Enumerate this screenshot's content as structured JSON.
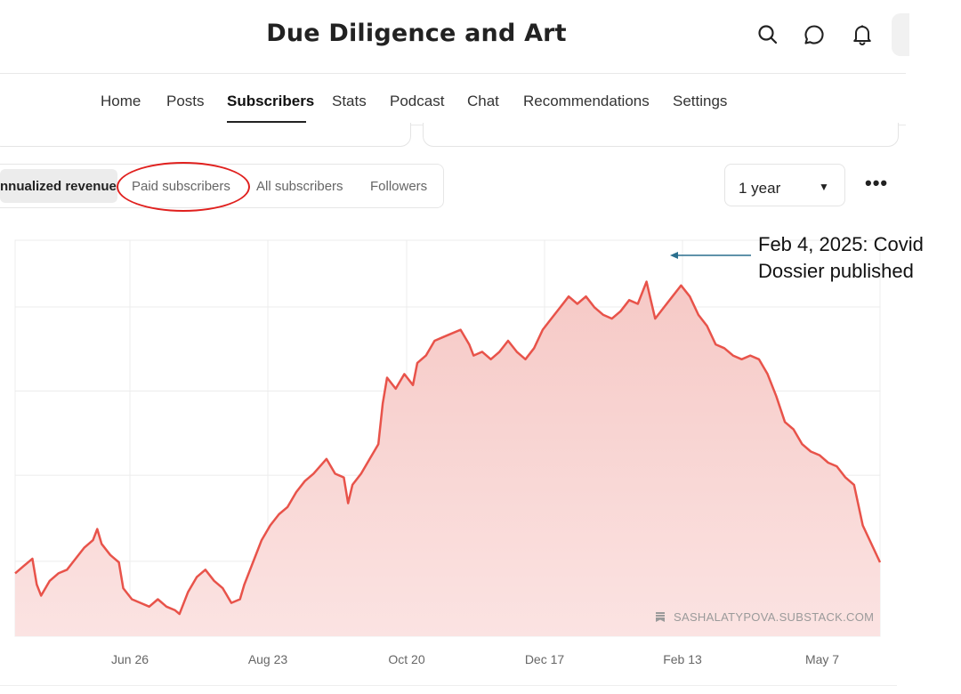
{
  "header": {
    "title": "Due Diligence and Art",
    "icons": [
      "search-icon",
      "chat-icon",
      "bell-icon"
    ]
  },
  "nav": {
    "tabs": [
      "Home",
      "Posts",
      "Subscribers",
      "Stats",
      "Podcast",
      "Chat",
      "Recommendations",
      "Settings"
    ],
    "active": "Subscribers"
  },
  "segments": {
    "items": [
      "nnualized revenue",
      "Paid subscribers",
      "All subscribers",
      "Followers"
    ],
    "active": "nnualized revenue",
    "highlighted": "Paid subscribers"
  },
  "range": {
    "value": "1 year"
  },
  "more_label": "•••",
  "watermark": "SASHALATYPOVA.SUBSTACK.COM",
  "annotation": {
    "line1": "Feb 4, 2025: Covid",
    "line2": "Dossier published"
  },
  "colors": {
    "line": "#e8534a",
    "fill_top": "#f6c9c6",
    "fill_bottom": "#fbe3e2",
    "annotation_arrow": "#2a6f8e",
    "highlight_circle": "#e0201e"
  },
  "chart_data": {
    "type": "area",
    "xlabel": "",
    "ylabel": "",
    "x_tick_labels": [
      "Jun 26",
      "Aug 23",
      "Oct 20",
      "Dec 17",
      "Feb 13",
      "May 7"
    ],
    "y_tick_labels_visible": false,
    "grid": true,
    "points": [
      [
        0.0,
        0.17
      ],
      [
        0.01,
        0.19
      ],
      [
        0.02,
        0.21
      ],
      [
        0.025,
        0.14
      ],
      [
        0.03,
        0.11
      ],
      [
        0.04,
        0.15
      ],
      [
        0.05,
        0.17
      ],
      [
        0.06,
        0.18
      ],
      [
        0.07,
        0.21
      ],
      [
        0.08,
        0.24
      ],
      [
        0.09,
        0.26
      ],
      [
        0.095,
        0.29
      ],
      [
        0.1,
        0.25
      ],
      [
        0.11,
        0.22
      ],
      [
        0.12,
        0.2
      ],
      [
        0.125,
        0.13
      ],
      [
        0.135,
        0.1
      ],
      [
        0.145,
        0.09
      ],
      [
        0.155,
        0.08
      ],
      [
        0.165,
        0.1
      ],
      [
        0.175,
        0.08
      ],
      [
        0.185,
        0.07
      ],
      [
        0.19,
        0.06
      ],
      [
        0.2,
        0.12
      ],
      [
        0.21,
        0.16
      ],
      [
        0.22,
        0.18
      ],
      [
        0.23,
        0.15
      ],
      [
        0.24,
        0.13
      ],
      [
        0.25,
        0.09
      ],
      [
        0.26,
        0.1
      ],
      [
        0.265,
        0.14
      ],
      [
        0.275,
        0.2
      ],
      [
        0.285,
        0.26
      ],
      [
        0.295,
        0.3
      ],
      [
        0.305,
        0.33
      ],
      [
        0.315,
        0.35
      ],
      [
        0.325,
        0.39
      ],
      [
        0.335,
        0.42
      ],
      [
        0.345,
        0.44
      ],
      [
        0.36,
        0.48
      ],
      [
        0.37,
        0.44
      ],
      [
        0.38,
        0.43
      ],
      [
        0.385,
        0.36
      ],
      [
        0.39,
        0.41
      ],
      [
        0.4,
        0.44
      ],
      [
        0.41,
        0.48
      ],
      [
        0.42,
        0.52
      ],
      [
        0.425,
        0.63
      ],
      [
        0.43,
        0.7
      ],
      [
        0.44,
        0.67
      ],
      [
        0.45,
        0.71
      ],
      [
        0.46,
        0.68
      ],
      [
        0.465,
        0.74
      ],
      [
        0.475,
        0.76
      ],
      [
        0.485,
        0.8
      ],
      [
        0.495,
        0.81
      ],
      [
        0.505,
        0.82
      ],
      [
        0.515,
        0.83
      ],
      [
        0.525,
        0.79
      ],
      [
        0.53,
        0.76
      ],
      [
        0.54,
        0.77
      ],
      [
        0.55,
        0.75
      ],
      [
        0.56,
        0.77
      ],
      [
        0.57,
        0.8
      ],
      [
        0.58,
        0.77
      ],
      [
        0.59,
        0.75
      ],
      [
        0.6,
        0.78
      ],
      [
        0.61,
        0.83
      ],
      [
        0.62,
        0.86
      ],
      [
        0.63,
        0.89
      ],
      [
        0.64,
        0.92
      ],
      [
        0.65,
        0.9
      ],
      [
        0.66,
        0.92
      ],
      [
        0.67,
        0.89
      ],
      [
        0.68,
        0.87
      ],
      [
        0.69,
        0.86
      ],
      [
        0.7,
        0.88
      ],
      [
        0.71,
        0.91
      ],
      [
        0.72,
        0.9
      ],
      [
        0.73,
        0.96
      ],
      [
        0.735,
        0.91
      ],
      [
        0.74,
        0.86
      ],
      [
        0.75,
        0.89
      ],
      [
        0.76,
        0.92
      ],
      [
        0.77,
        0.95
      ],
      [
        0.78,
        0.92
      ],
      [
        0.79,
        0.87
      ],
      [
        0.8,
        0.84
      ],
      [
        0.81,
        0.79
      ],
      [
        0.82,
        0.78
      ],
      [
        0.83,
        0.76
      ],
      [
        0.84,
        0.75
      ],
      [
        0.85,
        0.76
      ],
      [
        0.86,
        0.75
      ],
      [
        0.87,
        0.71
      ],
      [
        0.88,
        0.65
      ],
      [
        0.89,
        0.58
      ],
      [
        0.9,
        0.56
      ],
      [
        0.91,
        0.52
      ],
      [
        0.92,
        0.5
      ],
      [
        0.93,
        0.49
      ],
      [
        0.94,
        0.47
      ],
      [
        0.95,
        0.46
      ],
      [
        0.96,
        0.43
      ],
      [
        0.97,
        0.41
      ],
      [
        0.98,
        0.3
      ],
      [
        1.0,
        0.2
      ]
    ]
  }
}
